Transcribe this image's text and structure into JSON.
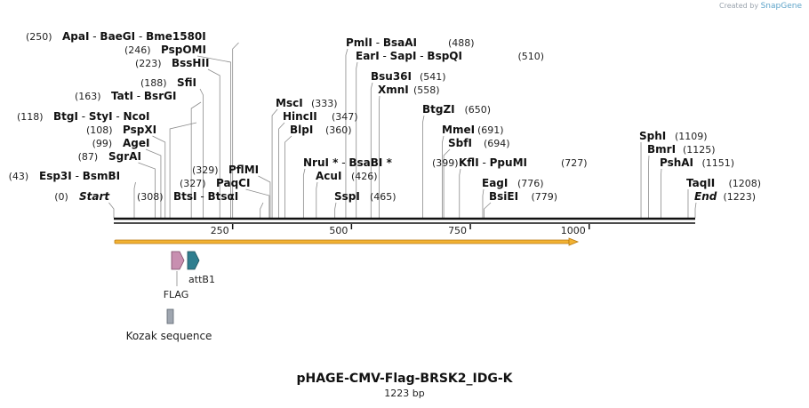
{
  "credit": {
    "prefix": "Created by",
    "brand": "SnapGene"
  },
  "plasmid": {
    "name": "pHAGE-CMV-Flag-BRSK2_IDG-K",
    "length_label": "1223 bp",
    "length": 1223
  },
  "ruler": {
    "ticks": [
      250,
      500,
      750,
      1000
    ],
    "labels": [
      "250",
      "500",
      "750",
      "1000"
    ]
  },
  "sites": [
    {
      "parts": [
        "ApaI",
        "BaeGI",
        "Bme1580I"
      ],
      "pos": "(250)",
      "p": 250,
      "side": "L"
    },
    {
      "parts": [
        "PspOMI"
      ],
      "pos": "(246)",
      "p": 246,
      "side": "L"
    },
    {
      "parts": [
        "BssHII"
      ],
      "pos": "(223)",
      "p": 223,
      "side": "L"
    },
    {
      "parts": [
        "SfiI"
      ],
      "pos": "(188)",
      "p": 188,
      "side": "L"
    },
    {
      "parts": [
        "TatI",
        "BsrGI"
      ],
      "pos": "(163)",
      "p": 163,
      "side": "L"
    },
    {
      "parts": [
        "BtgI",
        "StyI",
        "NcoI"
      ],
      "pos": "(118)",
      "p": 118,
      "side": "L"
    },
    {
      "parts": [
        "PspXI"
      ],
      "pos": "(108)",
      "p": 108,
      "side": "L"
    },
    {
      "parts": [
        "AgeI"
      ],
      "pos": "(99)",
      "p": 99,
      "side": "L"
    },
    {
      "parts": [
        "SgrAI"
      ],
      "pos": "(87)",
      "p": 87,
      "side": "L"
    },
    {
      "parts": [
        "Esp3I",
        "BsmBI"
      ],
      "pos": "(43)",
      "p": 43,
      "side": "L"
    },
    {
      "parts": [
        "Start"
      ],
      "pos": "(0)",
      "p": 0,
      "side": "L",
      "italic": true
    },
    {
      "parts": [
        "PflMI"
      ],
      "pos": "(329)",
      "p": 329,
      "side": "L"
    },
    {
      "parts": [
        "PaqCI"
      ],
      "pos": "(327)",
      "p": 327,
      "side": "L"
    },
    {
      "parts": [
        "BtsI",
        "BtsαI"
      ],
      "pos": "(308)",
      "p": 308,
      "side": "L"
    },
    {
      "parts": [
        "PmlI",
        "BsaAI"
      ],
      "pos": "(488)",
      "p": 488,
      "side": "R"
    },
    {
      "parts": [
        "EarI",
        "SapI",
        "BspQI"
      ],
      "pos": "(510)",
      "p": 510,
      "side": "R"
    },
    {
      "parts": [
        "Bsu36I"
      ],
      "pos": "(541)",
      "p": 541,
      "side": "R"
    },
    {
      "parts": [
        "XmnI"
      ],
      "pos": "(558)",
      "p": 558,
      "side": "R"
    },
    {
      "parts": [
        "MscI"
      ],
      "pos": "(333)",
      "p": 333,
      "side": "R"
    },
    {
      "parts": [
        "HincII"
      ],
      "pos": "(347)",
      "p": 347,
      "side": "R"
    },
    {
      "parts": [
        "BlpI"
      ],
      "pos": "(360)",
      "p": 360,
      "side": "R"
    },
    {
      "parts": [
        "NruI *",
        "BsaBI *"
      ],
      "pos": "(399)",
      "p": 399,
      "side": "R"
    },
    {
      "parts": [
        "AcuI"
      ],
      "pos": "(426)",
      "p": 426,
      "side": "R"
    },
    {
      "parts": [
        "SspI"
      ],
      "pos": "(465)",
      "p": 465,
      "side": "R"
    },
    {
      "parts": [
        "BtgZI"
      ],
      "pos": "(650)",
      "p": 650,
      "side": "R"
    },
    {
      "parts": [
        "MmeI"
      ],
      "pos": "(691)",
      "p": 691,
      "side": "R"
    },
    {
      "parts": [
        "SbfI"
      ],
      "pos": "(694)",
      "p": 694,
      "side": "R"
    },
    {
      "parts": [
        "KflI",
        "PpuMI"
      ],
      "pos": "(727)",
      "p": 727,
      "side": "R"
    },
    {
      "parts": [
        "EagI"
      ],
      "pos": "(776)",
      "p": 776,
      "side": "R"
    },
    {
      "parts": [
        "BsiEI"
      ],
      "pos": "(779)",
      "p": 779,
      "side": "R"
    },
    {
      "parts": [
        "SphI"
      ],
      "pos": "(1109)",
      "p": 1109,
      "side": "R"
    },
    {
      "parts": [
        "BmrI"
      ],
      "pos": "(1125)",
      "p": 1125,
      "side": "R"
    },
    {
      "parts": [
        "PshAI"
      ],
      "pos": "(1151)",
      "p": 1151,
      "side": "R"
    },
    {
      "parts": [
        "TaqII"
      ],
      "pos": "(1208)",
      "p": 1208,
      "side": "R"
    },
    {
      "parts": [
        "End"
      ],
      "pos": "(1223)",
      "p": 1223,
      "side": "R",
      "italic": true
    }
  ],
  "features": {
    "flag": {
      "label": "FLAG",
      "color": "#c88fb0"
    },
    "attb1": {
      "label": "attB1",
      "color": "#2f7e8f"
    },
    "kozak": {
      "label": "Kozak sequence",
      "color": "#9fa6b0"
    },
    "orf_color": "#f2b233"
  }
}
